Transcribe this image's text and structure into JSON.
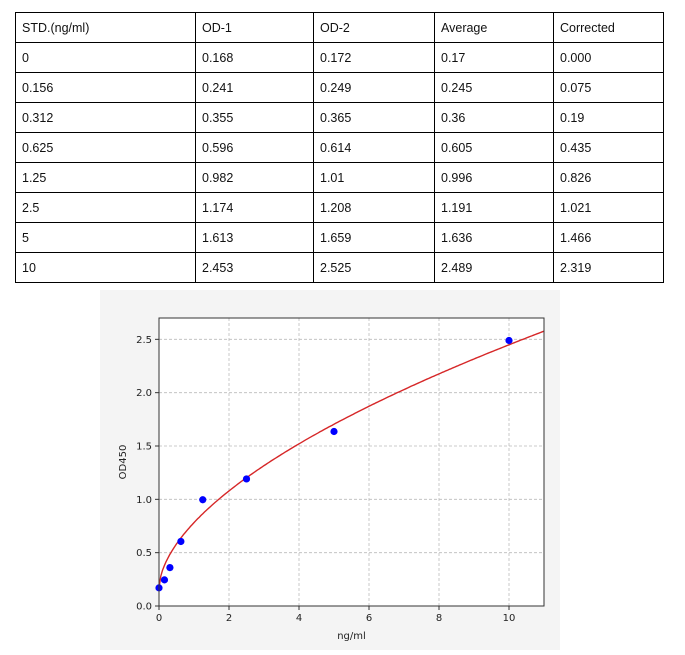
{
  "table": {
    "headers": [
      "STD.(ng/ml)",
      "OD-1",
      "OD-2",
      "Average",
      "Corrected"
    ],
    "rows": [
      [
        "0",
        "0.168",
        "0.172",
        "0.17",
        "0.000"
      ],
      [
        "0.156",
        "0.241",
        "0.249",
        "0.245",
        "0.075"
      ],
      [
        "0.312",
        "0.355",
        "0.365",
        "0.36",
        "0.19"
      ],
      [
        "0.625",
        "0.596",
        "0.614",
        "0.605",
        "0.435"
      ],
      [
        "1.25",
        "0.982",
        "1.01",
        "0.996",
        "0.826"
      ],
      [
        "2.5",
        "1.174",
        "1.208",
        "1.191",
        "1.021"
      ],
      [
        "5",
        "1.613",
        "1.659",
        "1.636",
        "1.466"
      ],
      [
        "10",
        "2.453",
        "2.525",
        "2.489",
        "2.319"
      ]
    ]
  },
  "chart_data": {
    "type": "scatter",
    "xlabel": "ng/ml",
    "ylabel": "OD450",
    "xlim": [
      0,
      11
    ],
    "ylim": [
      0,
      2.7
    ],
    "xticks": [
      "0",
      "2",
      "4",
      "6",
      "8",
      "10"
    ],
    "yticks": [
      "0.0",
      "0.5",
      "1.0",
      "1.5",
      "2.0",
      "2.5"
    ],
    "grid": true,
    "points": {
      "x": [
        0,
        0.156,
        0.312,
        0.625,
        1.25,
        2.5,
        5,
        10
      ],
      "y": [
        0.17,
        0.245,
        0.36,
        0.605,
        0.996,
        1.191,
        1.636,
        2.489
      ],
      "color": "#0000ff"
    },
    "fit_curve": {
      "color": "#d62728"
    }
  }
}
